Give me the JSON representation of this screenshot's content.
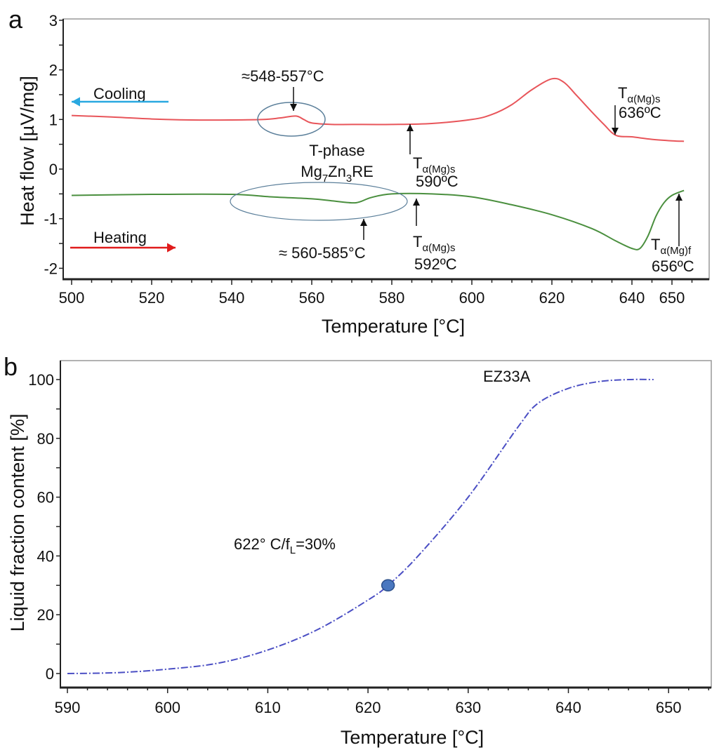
{
  "colors": {
    "cooling": "#e8555a",
    "heating": "#4a8f3e",
    "cooling_arrow": "#29a8e0",
    "heating_arrow": "#e01b1b",
    "ellipse": "#5b7f9a",
    "fraction_curve": "#4b4fc4",
    "marker": "#4a78c0"
  },
  "chart_data": [
    {
      "panel_label": "a",
      "type": "line",
      "xlabel": "Temperature [°C]",
      "ylabel": "Heat flow [µV/mg]",
      "xlim": [
        498,
        658
      ],
      "ylim": [
        -2.2,
        3.05
      ],
      "x_ticks": [
        500,
        520,
        540,
        560,
        580,
        600,
        620,
        640,
        650
      ],
      "y_ticks": [
        3,
        2,
        1,
        0,
        -1,
        -2
      ],
      "series": [
        {
          "name": "Cooling",
          "x": [
            500,
            510,
            520,
            530,
            540,
            548,
            552,
            556,
            558,
            560,
            565,
            570,
            580,
            590,
            600,
            605,
            610,
            615,
            620,
            623,
            626,
            630,
            633,
            636,
            640,
            645,
            650,
            653
          ],
          "y": [
            1.08,
            1.05,
            1.01,
            0.99,
            0.99,
            1.0,
            1.03,
            1.07,
            1.0,
            0.93,
            0.9,
            0.9,
            0.9,
            0.92,
            1.0,
            1.1,
            1.3,
            1.6,
            1.82,
            1.75,
            1.5,
            1.15,
            0.9,
            0.68,
            0.65,
            0.6,
            0.57,
            0.56
          ]
        },
        {
          "name": "Heating",
          "x": [
            500,
            520,
            540,
            550,
            560,
            565,
            570,
            572,
            575,
            580,
            590,
            600,
            610,
            620,
            630,
            636,
            640,
            642,
            644,
            646,
            648,
            650,
            653
          ],
          "y": [
            -0.53,
            -0.51,
            -0.51,
            -0.56,
            -0.6,
            -0.64,
            -0.68,
            -0.66,
            -0.57,
            -0.5,
            -0.5,
            -0.56,
            -0.72,
            -0.92,
            -1.2,
            -1.45,
            -1.6,
            -1.6,
            -1.35,
            -0.95,
            -0.68,
            -0.53,
            -0.43
          ]
        }
      ],
      "annotations": {
        "cooling_label": "Cooling",
        "heating_label": "Heating",
        "peak_range": "≈548-557°C",
        "tphase_line1": "T-phase",
        "tphase_formula": {
          "a": "Mg",
          "s1": "7",
          "b": "Zn",
          "s2": "3",
          "c": "RE"
        },
        "heating_range": "≈ 560-585°C",
        "t_main": "T",
        "t_sub_s": "α(Mg)s",
        "t_sub_f": "α(Mg)f",
        "cool_590": "590ºC",
        "cool_636": "636ºC",
        "heat_592": "592ºC",
        "heat_656": "656ºC"
      }
    },
    {
      "panel_label": "b",
      "type": "line",
      "title": "EZ33A",
      "xlabel": "Temperature [°C]",
      "ylabel": "Liquid fraction content [%]",
      "xlim": [
        589,
        654.5
      ],
      "ylim": [
        -5,
        106.5
      ],
      "x_ticks": [
        590,
        600,
        610,
        620,
        630,
        640,
        650
      ],
      "y_ticks": [
        0,
        20,
        40,
        60,
        80,
        100
      ],
      "series": [
        {
          "name": "EZ33A",
          "x": [
            590,
            595,
            600,
            605,
            610,
            615,
            620,
            622,
            625,
            630,
            635,
            637,
            640,
            643,
            646,
            648.5
          ],
          "y": [
            0,
            0.3,
            1.5,
            3.5,
            8,
            15,
            25,
            30,
            40,
            60,
            84,
            92,
            97,
            99.3,
            100,
            100
          ]
        }
      ],
      "marker": {
        "x": 622,
        "y": 30
      },
      "annotation": {
        "main": "622° C/f",
        "sub": "L",
        "tail": "=30%"
      }
    }
  ]
}
